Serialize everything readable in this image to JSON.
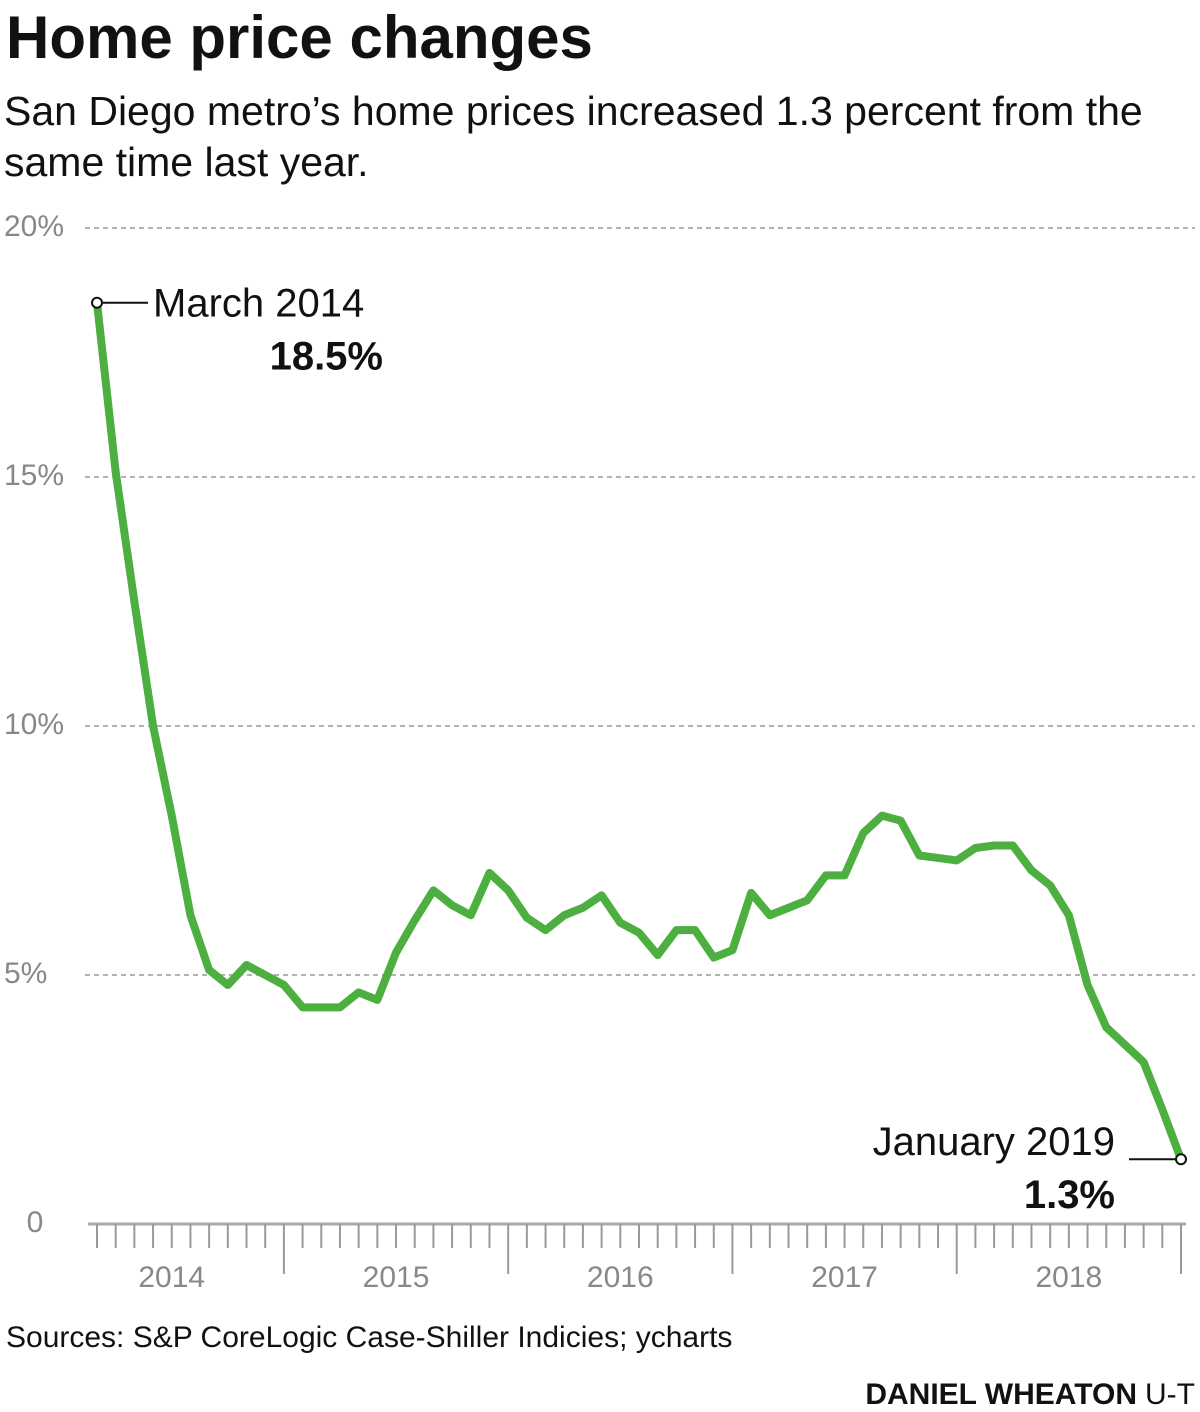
{
  "chart_data": {
    "type": "line",
    "title": "Home price changes",
    "subtitle": "San Diego metro’s home prices increased 1.3 percent from the same time last year.",
    "source": "Sources: S&P CoreLogic Case-Shiller Indicies; ycharts",
    "credit": "DANIEL WHEATON",
    "credit_org": "U-T",
    "color": "#4caf3f",
    "x": [
      2014.1667,
      2014.25,
      2014.3333,
      2014.4167,
      2014.5,
      2014.5833,
      2014.6667,
      2014.75,
      2014.8333,
      2014.9167,
      2015,
      2015.0833,
      2015.1667,
      2015.25,
      2015.3333,
      2015.4167,
      2015.5,
      2015.5833,
      2015.6667,
      2015.75,
      2015.8333,
      2015.9167,
      2016,
      2016.0833,
      2016.1667,
      2016.25,
      2016.3333,
      2016.4167,
      2016.5,
      2016.5833,
      2016.6667,
      2016.75,
      2016.8333,
      2016.9167,
      2017,
      2017.0833,
      2017.1667,
      2017.25,
      2017.3333,
      2017.4167,
      2017.5,
      2017.5833,
      2017.6667,
      2017.75,
      2017.8333,
      2017.9167,
      2018,
      2018.0833,
      2018.1667,
      2018.25,
      2018.3333,
      2018.4167,
      2018.5,
      2018.5833,
      2018.6667,
      2018.75,
      2018.8333,
      2018.9167,
      2019
    ],
    "values": [
      18.5,
      15.1,
      12.5,
      10.0,
      8.2,
      6.2,
      5.1,
      4.8,
      5.2,
      5.0,
      4.8,
      4.35,
      4.35,
      4.35,
      4.65,
      4.5,
      5.45,
      6.1,
      6.7,
      6.4,
      6.2,
      7.05,
      6.7,
      6.15,
      5.9,
      6.2,
      6.35,
      6.6,
      6.05,
      5.85,
      5.4,
      5.9,
      5.9,
      5.35,
      5.5,
      6.65,
      6.2,
      6.35,
      6.5,
      7.0,
      7.0,
      7.85,
      8.2,
      8.1,
      7.4,
      7.35,
      7.3,
      7.55,
      7.6,
      7.6,
      7.1,
      6.8,
      6.2,
      4.8,
      3.95,
      3.6,
      3.25,
      2.3,
      1.3
    ],
    "point_labels": [
      "March 2014",
      null,
      null,
      null,
      null,
      null,
      null,
      null,
      null,
      null,
      null,
      null,
      null,
      null,
      null,
      null,
      null,
      null,
      null,
      null,
      null,
      null,
      null,
      null,
      null,
      null,
      null,
      null,
      null,
      null,
      null,
      null,
      null,
      null,
      null,
      null,
      null,
      null,
      null,
      null,
      null,
      null,
      null,
      null,
      null,
      null,
      null,
      null,
      null,
      null,
      null,
      null,
      null,
      null,
      null,
      null,
      null,
      null,
      "January 2019"
    ],
    "value_labels": [
      "18.5%",
      null,
      null,
      null,
      null,
      null,
      null,
      null,
      null,
      null,
      null,
      null,
      null,
      null,
      null,
      null,
      null,
      null,
      null,
      null,
      null,
      null,
      null,
      null,
      null,
      null,
      null,
      null,
      null,
      null,
      null,
      null,
      null,
      null,
      null,
      null,
      null,
      null,
      null,
      null,
      null,
      null,
      null,
      null,
      null,
      null,
      null,
      null,
      null,
      null,
      null,
      null,
      null,
      null,
      null,
      null,
      null,
      null,
      "1.3%"
    ],
    "xlim": [
      2014.1667,
      2019
    ],
    "xticks": [
      {
        "value": 2014.5,
        "label": "2014"
      },
      {
        "value": 2015.5,
        "label": "2015"
      },
      {
        "value": 2016.5,
        "label": "2016"
      },
      {
        "value": 2017.5,
        "label": "2017"
      },
      {
        "value": 2018.5,
        "label": "2018"
      }
    ],
    "ylim": [
      0,
      20
    ],
    "yticks": [
      0,
      {
        "value": 5,
        "label": "5%"
      },
      {
        "value": 10,
        "label": "10%"
      },
      {
        "value": 15,
        "label": "15%"
      },
      {
        "value": 20,
        "label": "20%"
      }
    ],
    "grid": true
  }
}
